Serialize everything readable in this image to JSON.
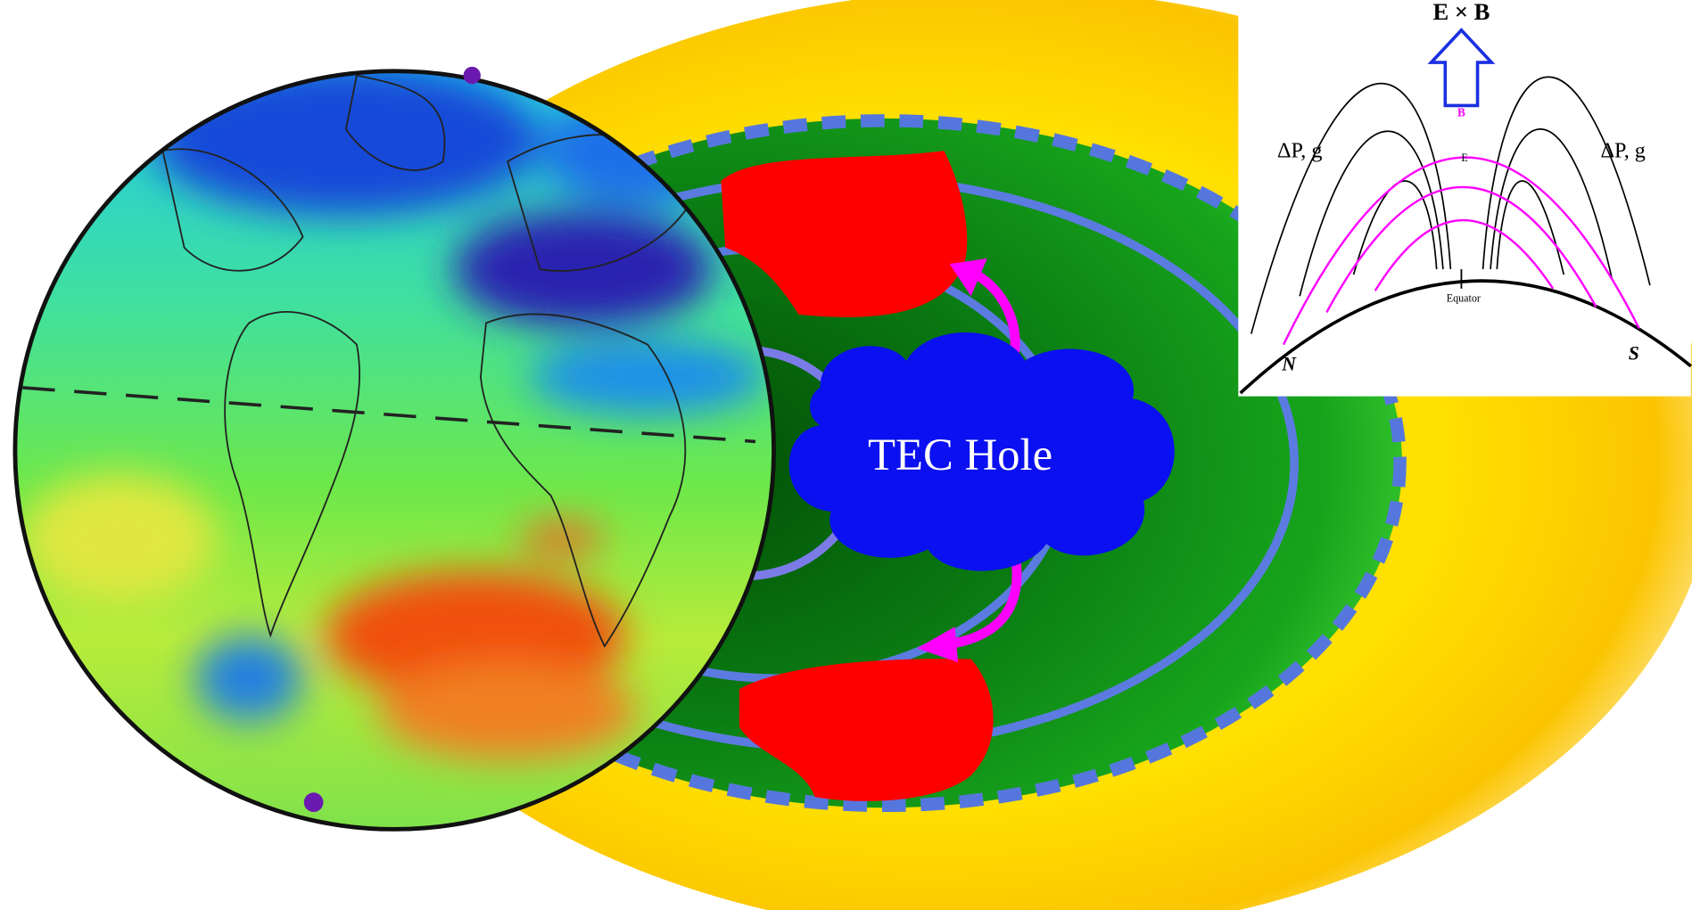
{
  "cloud": {
    "label": "TEC Hole"
  },
  "inset": {
    "arrow_label": "E × B",
    "left_label": "ΔP, g",
    "right_label": "ΔP, g",
    "b_label": "B",
    "e_label": "E",
    "equator_label": "Equator",
    "north_label": "N",
    "south_label": "S"
  }
}
